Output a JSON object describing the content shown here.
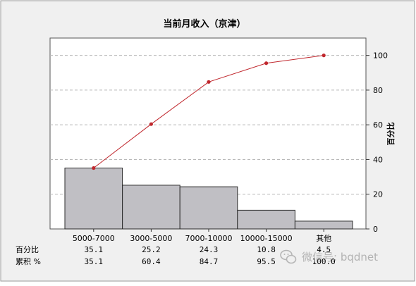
{
  "chart_data": {
    "type": "bar",
    "title": "当前月收入（京津）",
    "categories": [
      "5000-7000",
      "3000-5000",
      "7000-10000",
      "10000-15000",
      "其他"
    ],
    "values": [
      35.1,
      25.2,
      24.3,
      10.8,
      4.5
    ],
    "cumulative": [
      35.1,
      60.4,
      84.7,
      95.5,
      100.0
    ],
    "cumulative_labels": [
      "35.1",
      "60.4",
      "84.7",
      "95.5",
      "100.0"
    ],
    "value_labels": [
      "35.1",
      "25.2",
      "24.3",
      "10.8",
      "4.5"
    ],
    "series": [
      {
        "type": "bar",
        "values": [
          35.1,
          25.2,
          24.3,
          10.8,
          4.5
        ]
      },
      {
        "type": "line",
        "values": [
          35.1,
          60.4,
          84.7,
          95.5,
          100.0
        ]
      }
    ],
    "ylabel_right": "百分比",
    "ylim": [
      0,
      110
    ],
    "yticks": [
      0,
      20,
      40,
      60,
      80,
      100
    ],
    "grid": "horizontal-dashed",
    "table_rows": {
      "percent_label": "百分比",
      "cumulative_label": "累积 %"
    }
  },
  "watermark": "微信号: bqdnet",
  "colors": {
    "bar_fill": "#c0bfc4",
    "bar_stroke": "#2b2b2b",
    "line": "#c0272d",
    "plot_bg": "#ffffff",
    "outer_bg": "#f0f0f0",
    "grid": "#b8b8b8"
  }
}
